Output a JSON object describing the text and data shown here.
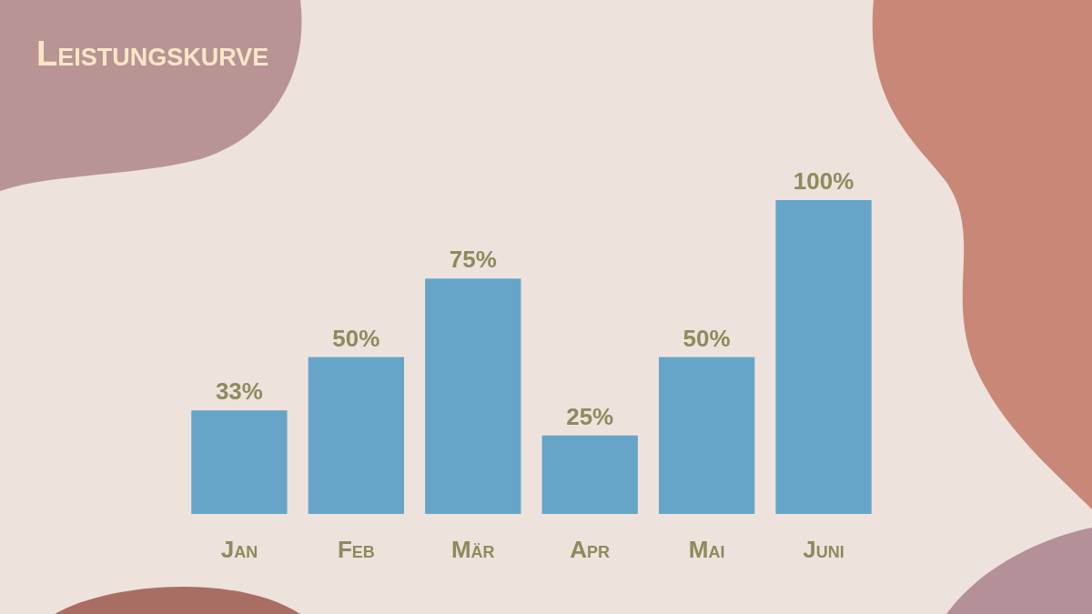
{
  "chart_data": {
    "type": "bar",
    "title": "Leistungskurve",
    "categories": [
      "Jan",
      "Feb",
      "Mär",
      "Apr",
      "Mai",
      "Juni"
    ],
    "values": [
      33,
      50,
      75,
      25,
      50,
      100
    ],
    "value_labels": [
      "33%",
      "50%",
      "75%",
      "25%",
      "50%",
      "100%"
    ],
    "color": "#66a5c8"
  }
}
